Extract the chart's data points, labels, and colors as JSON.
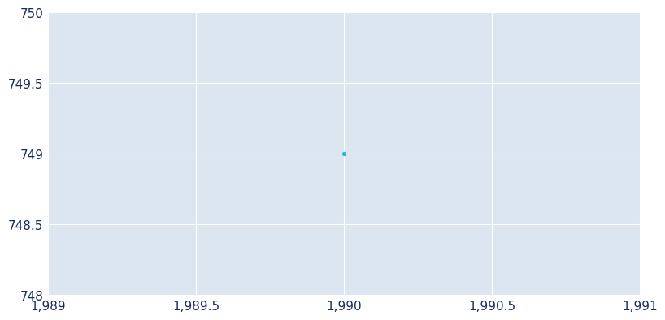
{
  "x_data": [
    1990
  ],
  "y_data": [
    749.0
  ],
  "xlim": [
    1989,
    1991
  ],
  "ylim": [
    748,
    750
  ],
  "xticks": [
    1989,
    1989.5,
    1990,
    1990.5,
    1991
  ],
  "yticks": [
    748,
    748.5,
    749,
    749.5,
    750
  ],
  "point_color": "#20c0c0",
  "point_size": 8,
  "axes_background_color": "#dce6f0",
  "figure_background_color": "#ffffff",
  "grid_color": "#ffffff",
  "tick_label_color": "#1a2a5e",
  "tick_label_fontsize": 11,
  "figsize": [
    8.0,
    4.0
  ],
  "dpi": 100
}
